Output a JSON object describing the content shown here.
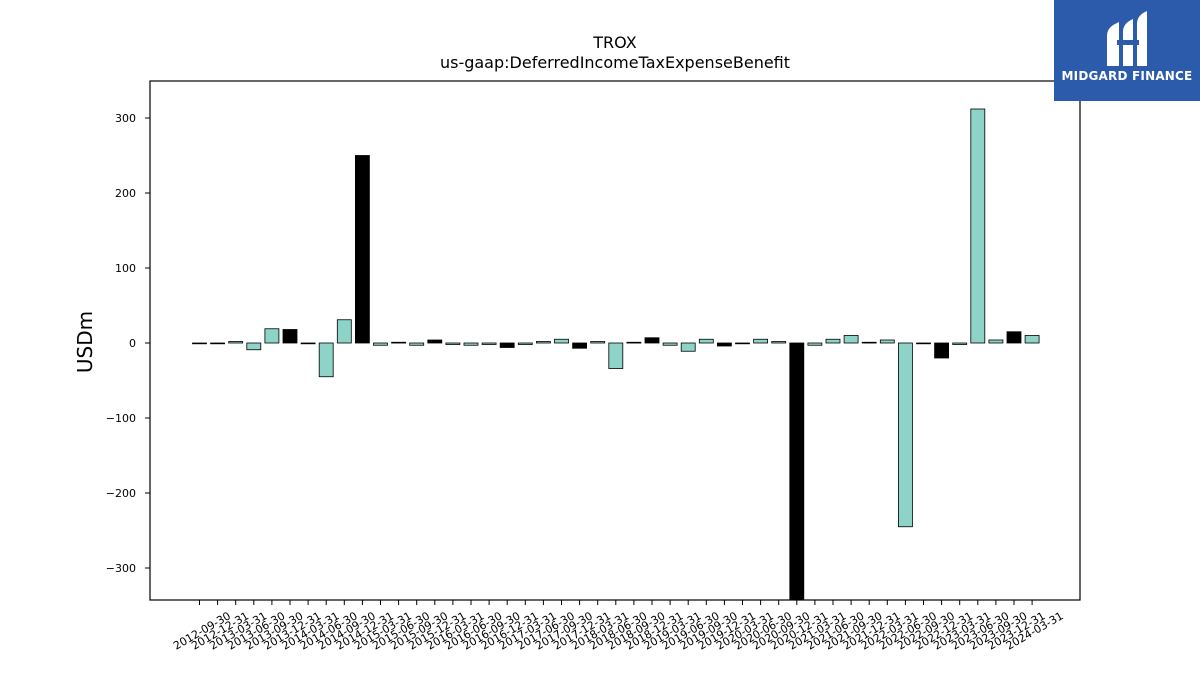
{
  "chart_data": {
    "type": "bar",
    "title": "TROX",
    "subtitle": "us-gaap:DeferredIncomeTaxExpenseBenefit",
    "ylabel": "USDm",
    "xlabel": "",
    "ylim": [
      -343,
      348
    ],
    "yticks": [
      300,
      200,
      100,
      0,
      -100,
      -200,
      -300
    ],
    "ytick_labels": [
      "300",
      "200",
      "100",
      "0",
      "−100",
      "−200",
      "−300"
    ],
    "categories": [
      "2012-09-30",
      "2012-12-31",
      "2013-03-31",
      "2013-06-30",
      "2013-09-30",
      "2013-12-31",
      "2014-03-31",
      "2014-06-30",
      "2014-09-30",
      "2014-12-31",
      "2015-03-31",
      "2015-06-30",
      "2015-09-30",
      "2015-12-31",
      "2016-03-31",
      "2016-06-30",
      "2016-09-30",
      "2016-12-31",
      "2017-03-31",
      "2017-06-30",
      "2017-09-30",
      "2017-12-31",
      "2018-03-31",
      "2018-06-30",
      "2018-09-30",
      "2018-12-31",
      "2019-03-31",
      "2019-06-30",
      "2019-09-30",
      "2019-12-31",
      "2020-03-31",
      "2020-06-30",
      "2020-09-30",
      "2020-12-31",
      "2021-03-31",
      "2021-06-30",
      "2021-09-30",
      "2021-12-31",
      "2022-03-31",
      "2022-06-30",
      "2022-09-30",
      "2022-12-31",
      "2023-03-31",
      "2023-06-30",
      "2023-09-30",
      "2023-12-31",
      "2024-03-31"
    ],
    "values": [
      -1,
      -1,
      2,
      -9,
      19,
      18,
      -1,
      -45,
      31,
      250,
      -3,
      1,
      -3,
      4,
      -2,
      -3,
      -2,
      -6,
      -2,
      2,
      5,
      -7,
      2,
      -34,
      1,
      7,
      -3,
      -11,
      5,
      -4,
      -1,
      5,
      2,
      -343,
      -3,
      5,
      10,
      1,
      4,
      -245,
      -1,
      -20,
      -2,
      312,
      4,
      15,
      10
    ],
    "bar_colors": [
      "#8dd3c7",
      "#8dd3c7",
      "#8dd3c7",
      "#8dd3c7",
      "#8dd3c7",
      "#000000",
      "#8dd3c7",
      "#8dd3c7",
      "#8dd3c7",
      "#000000",
      "#8dd3c7",
      "#8dd3c7",
      "#8dd3c7",
      "#000000",
      "#8dd3c7",
      "#8dd3c7",
      "#8dd3c7",
      "#000000",
      "#8dd3c7",
      "#8dd3c7",
      "#8dd3c7",
      "#000000",
      "#8dd3c7",
      "#8dd3c7",
      "#8dd3c7",
      "#000000",
      "#8dd3c7",
      "#8dd3c7",
      "#8dd3c7",
      "#000000",
      "#8dd3c7",
      "#8dd3c7",
      "#8dd3c7",
      "#000000",
      "#8dd3c7",
      "#8dd3c7",
      "#8dd3c7",
      "#8dd3c7",
      "#8dd3c7",
      "#8dd3c7",
      "#8dd3c7",
      "#000000",
      "#8dd3c7",
      "#8dd3c7",
      "#8dd3c7",
      "#000000",
      "#8dd3c7"
    ],
    "grid": false,
    "legend": "none"
  },
  "logo": {
    "text": "MIDGARD FINANCE",
    "color": "#2d5bab"
  }
}
